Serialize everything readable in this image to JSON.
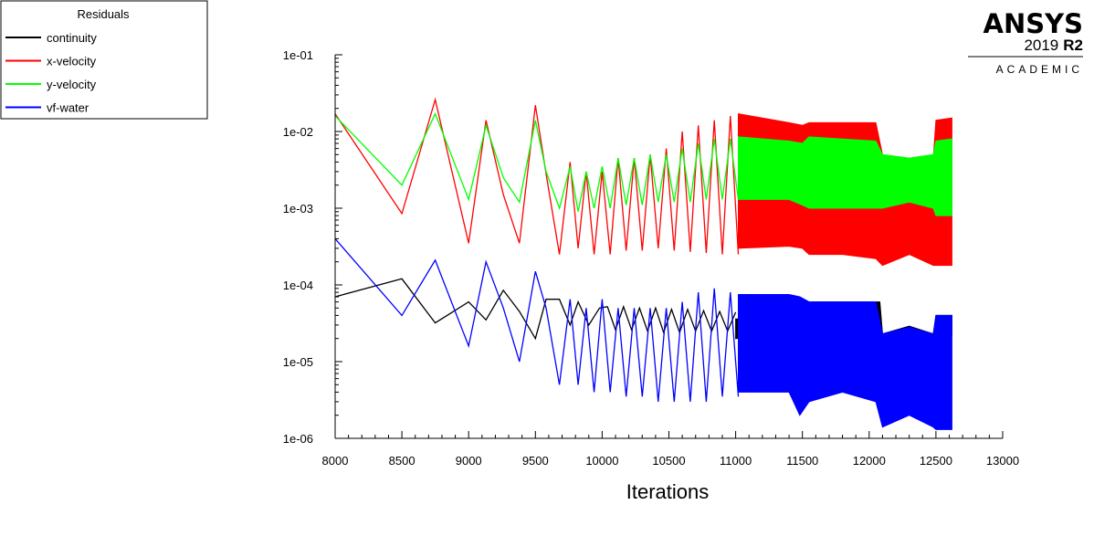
{
  "legend": {
    "title": "Residuals",
    "placement": "top-left"
  },
  "logo": {
    "brand": "ANSYS",
    "version": "2019",
    "release": "R2",
    "edition": "ACADEMIC"
  },
  "chart_data": {
    "type": "line",
    "title": "",
    "xlabel": "Iterations",
    "ylabel": "",
    "xlim": [
      8000,
      13000
    ],
    "ylim": [
      1e-06,
      0.1
    ],
    "yscale": "log",
    "grid": false,
    "x_ticks": [
      8000,
      8500,
      9000,
      9500,
      10000,
      10500,
      11000,
      11500,
      12000,
      12500,
      13000
    ],
    "x_tick_labels": [
      "8000",
      "8500",
      "9000",
      "9500",
      "10000",
      "10500",
      "11000",
      "11500",
      "12000",
      "12500",
      "13000"
    ],
    "y_ticks": [
      0.1,
      0.01,
      0.001,
      0.0001,
      1e-05,
      1e-06
    ],
    "y_tick_labels": [
      "1e-01",
      "1e-02",
      "1e-03",
      "1e-04",
      "1e-05",
      "1e-06"
    ],
    "series": [
      {
        "name": "continuity",
        "color": "#000000",
        "x": [
          8000,
          8500,
          8750,
          9000,
          9130,
          9260,
          9380,
          9500,
          9580,
          9680,
          9760,
          9820,
          9900,
          9980,
          10040,
          10100,
          10160,
          10220,
          10280,
          10340,
          10400,
          10460,
          10520,
          10580,
          10640,
          10700,
          10760,
          10820,
          10880,
          10940,
          11000
        ],
        "y": [
          7e-05,
          0.00012,
          3.2e-05,
          6e-05,
          3.5e-05,
          8.5e-05,
          4.5e-05,
          2e-05,
          6.5e-05,
          6.5e-05,
          3e-05,
          6e-05,
          3e-05,
          5e-05,
          5.2e-05,
          2.6e-05,
          5.2e-05,
          2.6e-05,
          5e-05,
          2.5e-05,
          5e-05,
          2.4e-05,
          4.8e-05,
          2.4e-05,
          4.8e-05,
          2.5e-05,
          4.6e-05,
          2.5e-05,
          4.5e-05,
          2.5e-05,
          4.4e-05
        ],
        "band": {
          "x": [
            11000,
            11500,
            11550,
            12080,
            12100,
            12300,
            12480,
            12500,
            12620
          ],
          "upper": [
            3.6e-05,
            3.6e-05,
            6e-05,
            6e-05,
            2.3e-05,
            2.9e-05,
            2.3e-05,
            4e-05,
            4e-05
          ],
          "lower": [
            2e-05,
            2.2e-05,
            3e-05,
            2.5e-05,
            2.1e-05,
            2.7e-05,
            2.1e-05,
            2.2e-05,
            2.2e-05
          ]
        }
      },
      {
        "name": "x-velocity",
        "color": "#ff0000",
        "x": [
          8000,
          8500,
          8750,
          9000,
          9130,
          9260,
          9380,
          9500,
          9580,
          9680,
          9760,
          9820,
          9880,
          9940,
          10000,
          10060,
          10120,
          10180,
          10240,
          10300,
          10360,
          10420,
          10480,
          10540,
          10600,
          10660,
          10720,
          10780,
          10840,
          10900,
          10960,
          11020
        ],
        "y": [
          0.017,
          0.00085,
          0.026,
          0.00035,
          0.014,
          0.0015,
          0.00035,
          0.022,
          0.0028,
          0.00025,
          0.004,
          0.0003,
          0.003,
          0.00025,
          0.003,
          0.00025,
          0.0045,
          0.00028,
          0.0045,
          0.00028,
          0.005,
          0.0003,
          0.006,
          0.00028,
          0.01,
          0.00027,
          0.012,
          0.00026,
          0.014,
          0.00025,
          0.016,
          0.00025
        ],
        "band": {
          "x": [
            11020,
            11400,
            11500,
            11550,
            11800,
            12050,
            12100,
            12300,
            12480,
            12500,
            12620
          ],
          "upper": [
            0.017,
            0.013,
            0.012,
            0.013,
            0.013,
            0.013,
            0.005,
            0.0035,
            0.0045,
            0.014,
            0.015
          ],
          "lower": [
            0.0003,
            0.00032,
            0.0003,
            0.00025,
            0.00025,
            0.00022,
            0.00018,
            0.00025,
            0.00018,
            0.00018,
            0.00018
          ]
        }
      },
      {
        "name": "y-velocity",
        "color": "#00ff00",
        "x": [
          8000,
          8500,
          8750,
          9000,
          9130,
          9260,
          9380,
          9500,
          9580,
          9680,
          9760,
          9820,
          9880,
          9940,
          10000,
          10060,
          10120,
          10180,
          10240,
          10300,
          10360,
          10420,
          10480,
          10540,
          10600,
          10660,
          10720,
          10780,
          10840,
          10900,
          10960,
          11020
        ],
        "y": [
          0.016,
          0.002,
          0.017,
          0.0013,
          0.012,
          0.0025,
          0.0012,
          0.014,
          0.003,
          0.001,
          0.0035,
          0.0009,
          0.003,
          0.001,
          0.0035,
          0.001,
          0.0045,
          0.0011,
          0.0045,
          0.0011,
          0.005,
          0.0012,
          0.005,
          0.0012,
          0.006,
          0.0012,
          0.007,
          0.0013,
          0.008,
          0.0013,
          0.008,
          0.0013
        ],
        "band": {
          "x": [
            11020,
            11400,
            11500,
            11550,
            12050,
            12100,
            12300,
            12480,
            12500,
            12620
          ],
          "upper": [
            0.0085,
            0.0075,
            0.007,
            0.0085,
            0.0075,
            0.005,
            0.0045,
            0.005,
            0.0075,
            0.008
          ],
          "lower": [
            0.0013,
            0.0013,
            0.0011,
            0.001,
            0.001,
            0.001,
            0.0012,
            0.001,
            0.0008,
            0.0008
          ]
        }
      },
      {
        "name": "vf-water",
        "color": "#0000ff",
        "x": [
          8000,
          8500,
          8750,
          9000,
          9130,
          9260,
          9380,
          9500,
          9580,
          9680,
          9760,
          9820,
          9880,
          9940,
          10000,
          10060,
          10120,
          10180,
          10240,
          10300,
          10360,
          10420,
          10480,
          10540,
          10600,
          10660,
          10720,
          10780,
          10840,
          10900,
          10960,
          11020
        ],
        "y": [
          0.0004,
          4e-05,
          0.00021,
          1.6e-05,
          0.0002,
          5e-05,
          1e-05,
          0.00015,
          5e-05,
          5e-06,
          6.5e-05,
          5e-06,
          5e-05,
          4e-06,
          6.5e-05,
          4e-06,
          5e-05,
          3.5e-06,
          5e-05,
          3.5e-06,
          5e-05,
          3e-06,
          5e-05,
          3e-06,
          6e-05,
          3e-06,
          8e-05,
          3e-06,
          9e-05,
          3.5e-06,
          8e-05,
          3.5e-06
        ],
        "band": {
          "x": [
            11020,
            11400,
            11480,
            11550,
            11800,
            12050,
            12100,
            12300,
            12480,
            12500,
            12620
          ],
          "upper": [
            7.5e-05,
            7.5e-05,
            7e-05,
            6e-05,
            6e-05,
            6e-05,
            2.3e-05,
            2.8e-05,
            2.3e-05,
            4e-05,
            4e-05
          ],
          "lower": [
            4e-06,
            4e-06,
            2e-06,
            3e-06,
            4e-06,
            3e-06,
            1.4e-06,
            2e-06,
            1.4e-06,
            1.3e-06,
            1.3e-06
          ]
        }
      }
    ]
  }
}
